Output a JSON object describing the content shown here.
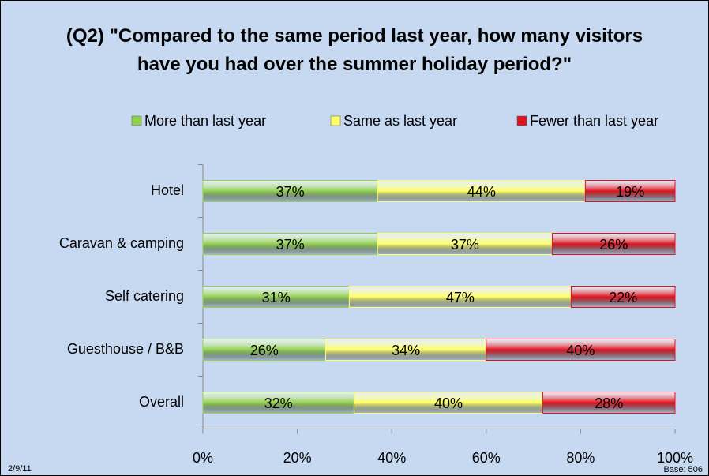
{
  "chart_data": {
    "type": "stacked_barh",
    "title": "(Q2) \"Compared to the same period last year, how many visitors have you had over the summer holiday period?\"",
    "categories": [
      "Hotel",
      "Caravan & camping",
      "Self catering",
      "Guesthouse / B&B",
      "Overall"
    ],
    "series": [
      {
        "name": "More than last year",
        "color": "#92d050",
        "values": [
          37,
          37,
          31,
          26,
          32
        ],
        "value_labels": [
          "37%",
          "37%",
          "31%",
          "26%",
          "32%"
        ]
      },
      {
        "name": "Same as last year",
        "color": "#ffff66",
        "values": [
          44,
          37,
          47,
          34,
          40
        ],
        "value_labels": [
          "44%",
          "37%",
          "47%",
          "34%",
          "40%"
        ]
      },
      {
        "name": "Fewer than last year",
        "color": "#e0141e",
        "values": [
          19,
          26,
          22,
          40,
          28
        ],
        "value_labels": [
          "19%",
          "26%",
          "22%",
          "40%",
          "28%"
        ]
      }
    ],
    "xlim": [
      0,
      100
    ],
    "xticks": [
      {
        "value": 0,
        "label": "0%"
      },
      {
        "value": 20,
        "label": "20%"
      },
      {
        "value": 40,
        "label": "40%"
      },
      {
        "value": 60,
        "label": "60%"
      },
      {
        "value": 80,
        "label": "80%"
      },
      {
        "value": 100,
        "label": "100%"
      }
    ],
    "grid": false,
    "legend": "top",
    "footnote_left": "2/9/11",
    "footnote_right": "Base: 506"
  }
}
